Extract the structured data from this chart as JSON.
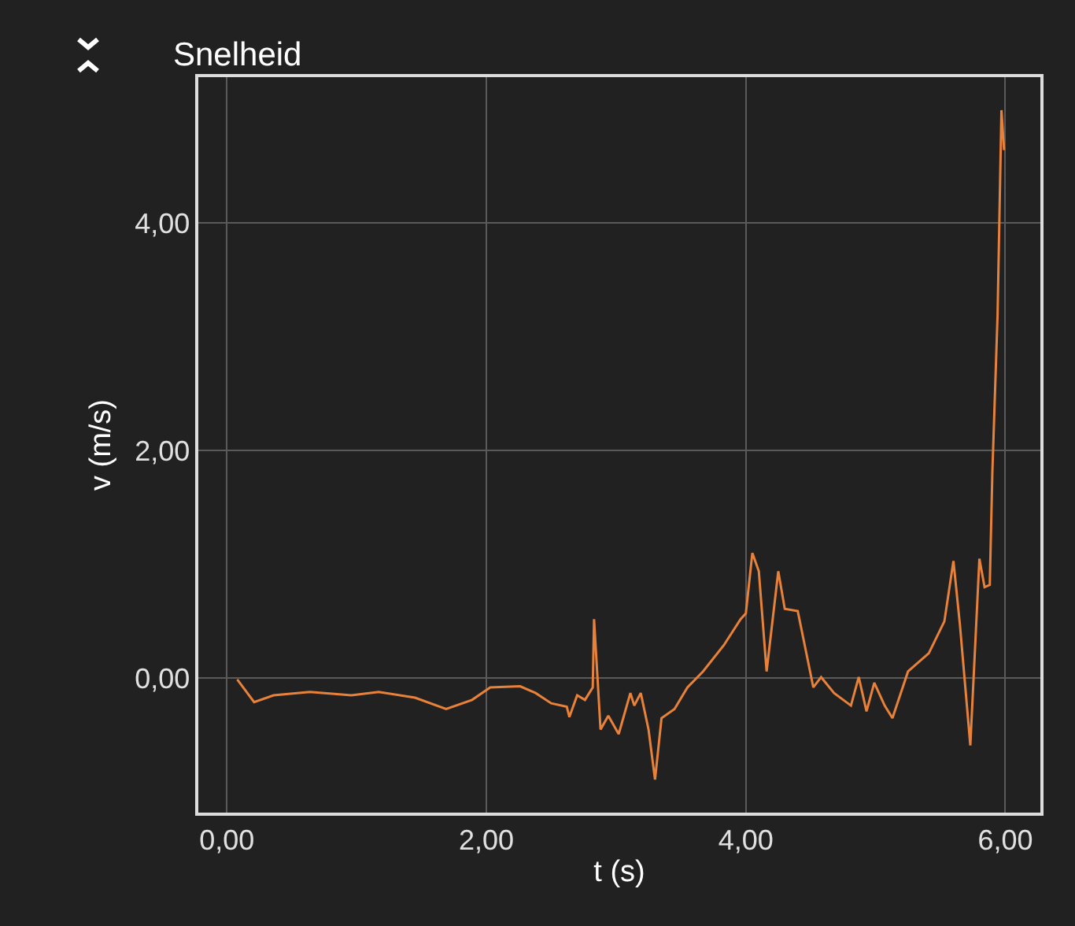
{
  "chart_data": {
    "type": "line",
    "title": "Snelheid",
    "xlabel": "t (s)",
    "ylabel": "v (m/s)",
    "x": [
      0.08,
      0.21,
      0.36,
      0.64,
      0.96,
      1.17,
      1.45,
      1.69,
      1.89,
      2.03,
      2.26,
      2.38,
      2.5,
      2.62,
      2.64,
      2.7,
      2.76,
      2.82,
      2.83,
      2.88,
      2.94,
      3.02,
      3.11,
      3.14,
      3.19,
      3.25,
      3.3,
      3.35,
      3.45,
      3.55,
      3.67,
      3.83,
      3.96,
      4.0,
      4.05,
      4.1,
      4.16,
      4.25,
      4.3,
      4.4,
      4.52,
      4.58,
      4.68,
      4.81,
      4.87,
      4.93,
      4.99,
      5.07,
      5.13,
      5.25,
      5.41,
      5.53,
      5.6,
      5.65,
      5.73,
      5.8,
      5.84,
      5.88,
      5.9,
      5.94,
      5.97,
      5.99
    ],
    "series": [
      {
        "color": "#e8823a",
        "values": [
          -0.01,
          -0.21,
          -0.15,
          -0.12,
          -0.15,
          -0.12,
          -0.17,
          -0.27,
          -0.19,
          -0.08,
          -0.07,
          -0.13,
          -0.22,
          -0.25,
          -0.34,
          -0.15,
          -0.19,
          -0.08,
          0.52,
          -0.45,
          -0.33,
          -0.49,
          -0.13,
          -0.24,
          -0.13,
          -0.45,
          -0.89,
          -0.35,
          -0.27,
          -0.08,
          0.06,
          0.29,
          0.52,
          0.57,
          1.1,
          0.94,
          0.06,
          0.94,
          0.61,
          0.59,
          -0.08,
          0.01,
          -0.13,
          -0.24,
          0.01,
          -0.29,
          -0.04,
          -0.24,
          -0.35,
          0.06,
          0.22,
          0.5,
          1.03,
          0.47,
          -0.59,
          1.05,
          0.8,
          0.82,
          1.81,
          3.19,
          4.99,
          4.64
        ]
      }
    ],
    "xlim": [
      -0.22,
      6.27
    ],
    "ylim": [
      -1.18,
      5.28
    ],
    "xticks": [
      {
        "value": 0,
        "label": "0,00"
      },
      {
        "value": 2,
        "label": "2,00"
      },
      {
        "value": 4,
        "label": "4,00"
      },
      {
        "value": 6,
        "label": "6,00"
      }
    ],
    "yticks": [
      {
        "value": 0,
        "label": "0,00"
      },
      {
        "value": 2,
        "label": "2,00"
      },
      {
        "value": 4,
        "label": "4,00"
      }
    ],
    "grid": true,
    "marker": "none",
    "line_style": "solid"
  }
}
